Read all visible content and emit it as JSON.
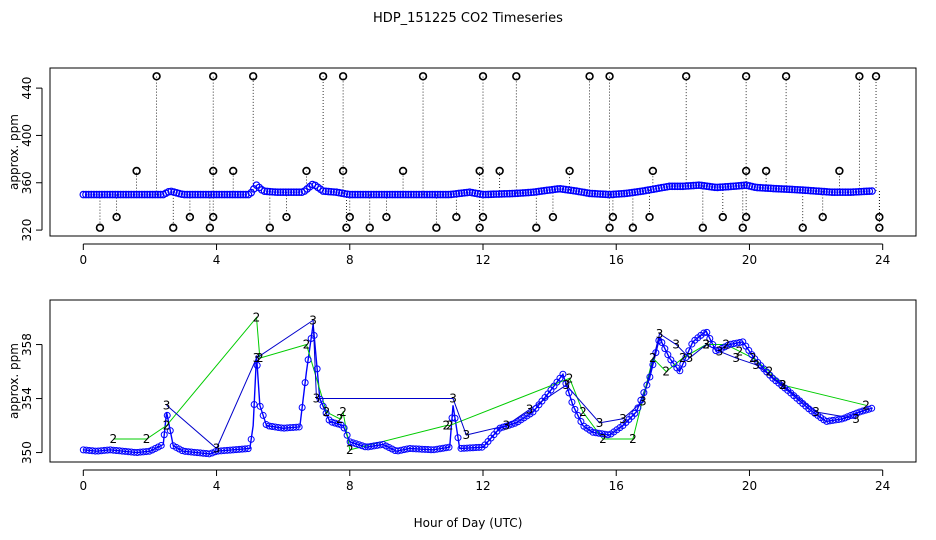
{
  "chart_data": [
    {
      "type": "line",
      "panel": "top",
      "title": "HDP_151225  CO2 Timeseries",
      "xlabel": "",
      "ylabel": "approx. ppm",
      "xlim": [
        -1,
        25
      ],
      "ylim": [
        315,
        457
      ],
      "xticks": [
        0,
        4,
        8,
        12,
        16,
        20,
        24
      ],
      "yticks": [
        320,
        360,
        400,
        440
      ],
      "grid": false,
      "baseline_series": {
        "name": "CO2",
        "color": "#0000ff",
        "x": [
          0.0,
          0.5,
          1.0,
          1.5,
          2.0,
          2.4,
          2.6,
          3.0,
          3.5,
          4.0,
          4.5,
          5.0,
          5.2,
          5.4,
          5.8,
          6.2,
          6.6,
          6.9,
          7.2,
          7.6,
          8.0,
          9.0,
          10.0,
          11.0,
          11.6,
          12.0,
          13.0,
          13.5,
          14.3,
          14.8,
          15.2,
          15.8,
          16.3,
          16.8,
          17.2,
          17.6,
          18.0,
          18.5,
          19.0,
          19.5,
          19.9,
          20.2,
          20.8,
          21.5,
          22.0,
          22.5,
          23.0,
          23.7
        ],
        "y": [
          350,
          350,
          350,
          350,
          350,
          350,
          353,
          350,
          350,
          350,
          350,
          350,
          358,
          353,
          352,
          352,
          352,
          359,
          353,
          352,
          350,
          350,
          350,
          350,
          352,
          350,
          351,
          352,
          355,
          353,
          351,
          350,
          351,
          353,
          355,
          357,
          357,
          358,
          356,
          357,
          358,
          356,
          355,
          354,
          353,
          352,
          352,
          353
        ]
      },
      "flag_upper": {
        "label": "O",
        "color": "#000000",
        "x": [
          2.2,
          3.9,
          5.1,
          7.2,
          7.8,
          10.2,
          12.0,
          13.0,
          15.2,
          15.8,
          18.1,
          19.9,
          21.1,
          23.3,
          23.8
        ],
        "y": [
          450,
          450,
          450,
          450,
          450,
          450,
          450,
          450,
          450,
          450,
          450,
          450,
          450,
          450,
          450
        ]
      },
      "flag_lower": {
        "label": "O",
        "color": "#000000",
        "x": [
          0.5,
          1.0,
          2.7,
          3.2,
          3.8,
          3.9,
          5.6,
          6.1,
          7.9,
          8.0,
          8.6,
          9.1,
          10.6,
          11.2,
          11.9,
          12.0,
          13.6,
          14.1,
          15.8,
          15.9,
          16.5,
          17.0,
          18.6,
          19.2,
          19.8,
          19.9,
          21.6,
          22.2,
          23.9,
          23.9
        ],
        "y": [
          322,
          331,
          322,
          331,
          322,
          331,
          322,
          331,
          322,
          331,
          322,
          331,
          322,
          331,
          322,
          331,
          322,
          331,
          322,
          331,
          322,
          331,
          322,
          331,
          322,
          331,
          322,
          331,
          322,
          331
        ]
      },
      "flag_mid": {
        "label": "O",
        "color": "#000000",
        "x": [
          1.6,
          3.9,
          4.5,
          6.7,
          7.8,
          9.6,
          11.9,
          12.5,
          14.6,
          17.1,
          19.9,
          20.5,
          22.7
        ],
        "y": [
          370,
          370,
          370,
          370,
          370,
          370,
          370,
          370,
          370,
          370,
          370,
          370,
          370
        ]
      }
    },
    {
      "type": "line",
      "panel": "bottom",
      "title": "",
      "xlabel": "Hour of Day (UTC)",
      "ylabel": "approx. ppm",
      "xlim": [
        -1,
        25
      ],
      "ylim": [
        349.3,
        361.3
      ],
      "xticks": [
        0,
        4,
        8,
        12,
        16,
        20,
        24
      ],
      "yticks": [
        350,
        354,
        358
      ],
      "grid": false,
      "series": [
        {
          "name": "1",
          "label": "O",
          "color": "#0000ff",
          "x": [
            0.0,
            0.4,
            0.8,
            1.2,
            1.6,
            2.0,
            2.4,
            2.5,
            2.7,
            3.0,
            3.4,
            3.8,
            4.0,
            4.5,
            5.0,
            5.1,
            5.2,
            5.3,
            5.5,
            6.0,
            6.5,
            6.7,
            6.9,
            7.1,
            7.4,
            7.8,
            8.0,
            8.5,
            9.0,
            9.4,
            9.8,
            10.5,
            11.0,
            11.1,
            11.3,
            12.0,
            12.5,
            13.0,
            13.5,
            14.0,
            14.4,
            14.7,
            15.0,
            15.3,
            15.8,
            16.2,
            16.6,
            17.0,
            17.3,
            17.6,
            17.9,
            18.3,
            18.7,
            19.0,
            19.4,
            19.8,
            20.2,
            20.7,
            21.2,
            21.8,
            22.3,
            22.8,
            23.3,
            23.7
          ],
          "y": [
            350.2,
            350.1,
            350.2,
            350.1,
            350.0,
            350.1,
            350.6,
            353.0,
            350.5,
            350.1,
            350.0,
            349.9,
            350.1,
            350.2,
            350.3,
            352.0,
            357.2,
            353.5,
            352.0,
            351.8,
            351.9,
            356.0,
            359.5,
            354.0,
            352.3,
            352.0,
            350.8,
            350.4,
            350.6,
            350.1,
            350.3,
            350.2,
            350.4,
            353.5,
            350.3,
            350.4,
            351.8,
            352.2,
            353.0,
            354.5,
            355.8,
            353.5,
            352.0,
            351.5,
            351.3,
            352.0,
            353.0,
            355.5,
            358.5,
            357.0,
            356.0,
            358.2,
            359.0,
            357.5,
            358.0,
            358.2,
            356.8,
            355.5,
            354.5,
            353.2,
            352.3,
            352.5,
            353.0,
            353.3
          ]
        },
        {
          "name": "2",
          "label": "2",
          "color": "#00cc00",
          "x": [
            0.9,
            1.9,
            2.5,
            5.2,
            5.3,
            6.7,
            7.3,
            7.7,
            7.8,
            8.0,
            10.9,
            11.0,
            14.6,
            15.0,
            15.6,
            16.5,
            17.1,
            17.5,
            18.0,
            18.7,
            19.3,
            19.7,
            20.1,
            20.6,
            21.0,
            23.5
          ],
          "y": [
            351.0,
            351.0,
            352.0,
            360.0,
            357.0,
            358.0,
            353.0,
            352.5,
            353.0,
            350.2,
            352.0,
            352.0,
            355.5,
            353.0,
            351.0,
            351.0,
            357.0,
            356.0,
            357.0,
            358.0,
            358.0,
            357.5,
            357.0,
            356.0,
            355.0,
            353.5
          ]
        },
        {
          "name": "3",
          "label": "3",
          "color": "#0000cc",
          "x": [
            2.5,
            4.0,
            5.2,
            6.9,
            7.0,
            11.1,
            11.5,
            12.7,
            13.4,
            14.5,
            15.5,
            16.2,
            16.8,
            17.3,
            17.8,
            18.2,
            18.7,
            19.1,
            19.6,
            20.2,
            21.0,
            22.0,
            23.2
          ],
          "y": [
            353.5,
            350.3,
            357.0,
            359.8,
            354.0,
            354.0,
            351.3,
            352.0,
            353.2,
            355.0,
            352.2,
            352.5,
            353.8,
            358.8,
            358.0,
            357.0,
            358.0,
            357.5,
            357.0,
            356.5,
            355.0,
            353.0,
            352.5
          ]
        }
      ]
    }
  ]
}
